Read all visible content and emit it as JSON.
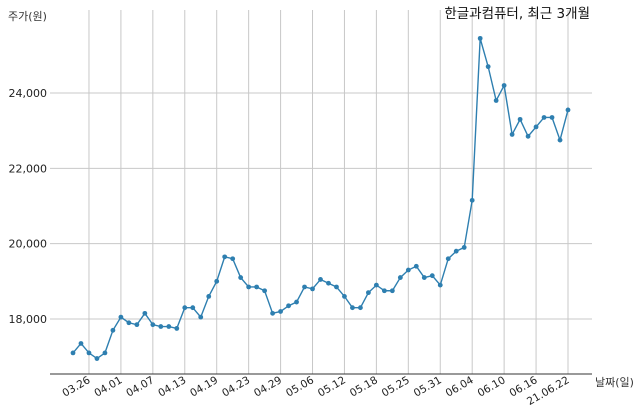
{
  "chart_data": {
    "type": "line",
    "title": "한글과컴퓨터, 최근 3개월",
    "ylabel": "주가(원)",
    "xlabel": "날짜(일)",
    "ylim": [
      16600,
      25900
    ],
    "yticks": [
      18000,
      20000,
      22000,
      24000
    ],
    "ytick_labels": [
      "18,000",
      "20,000",
      "22,000",
      "24,000"
    ],
    "grid": true,
    "line_color": "#2e7fb0",
    "marker_color": "#2e7fb0",
    "x_tick_labels": [
      "03.26",
      "04.01",
      "04.07",
      "04.13",
      "04.19",
      "04.23",
      "04.29",
      "05.06",
      "05.12",
      "05.18",
      "05.25",
      "05.31",
      "06.04",
      "06.10",
      "06.16",
      "21.06.22"
    ],
    "x_tick_indices": [
      2,
      6,
      10,
      14,
      18,
      22,
      26,
      30,
      34,
      38,
      42,
      46,
      50,
      54,
      58,
      62
    ],
    "values": [
      17100,
      17350,
      17100,
      16950,
      17100,
      17700,
      18050,
      17900,
      17850,
      18150,
      17850,
      17800,
      17800,
      17750,
      18300,
      18300,
      18050,
      18600,
      19000,
      19650,
      19600,
      19100,
      18850,
      18850,
      18750,
      18150,
      18200,
      18350,
      18450,
      18850,
      18800,
      19050,
      18950,
      18850,
      18600,
      18300,
      18300,
      18700,
      18900,
      18750,
      18750,
      19100,
      19300,
      19400,
      19100,
      19150,
      18900,
      19600,
      19800,
      19900,
      21150,
      25450,
      24700,
      23800,
      24200,
      22900,
      23300,
      22850,
      23100,
      23350,
      23350,
      22750,
      23550
    ]
  }
}
